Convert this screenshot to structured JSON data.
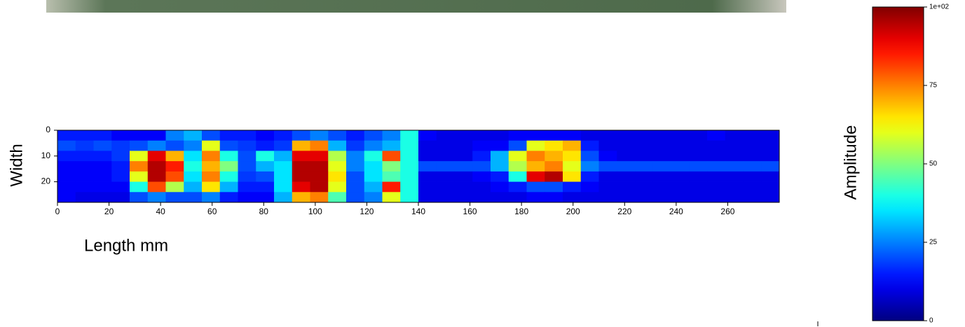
{
  "chart_data": {
    "type": "heatmap",
    "colormap": "jet",
    "xlabel": "Length mm",
    "ylabel": "Width",
    "xlim": [
      0,
      280
    ],
    "ylim": [
      28,
      0
    ],
    "xticks": [
      0,
      20,
      40,
      60,
      80,
      100,
      120,
      140,
      160,
      180,
      200,
      220,
      240,
      260
    ],
    "yticks": [
      0,
      10,
      20
    ],
    "xbins": [
      0,
      7,
      14,
      21,
      28,
      35,
      42,
      49,
      56,
      63,
      70,
      77,
      84,
      91,
      98,
      105,
      112,
      119,
      126,
      133,
      140,
      147,
      154,
      161,
      168,
      175,
      182,
      189,
      196,
      203,
      210,
      217,
      224,
      231,
      238,
      245,
      252,
      259,
      266,
      273,
      280
    ],
    "ybins": [
      0,
      4,
      8,
      12,
      16,
      20,
      24,
      28
    ],
    "z": [
      [
        15,
        15,
        15,
        12,
        12,
        12,
        25,
        30,
        20,
        15,
        15,
        12,
        15,
        20,
        25,
        20,
        15,
        20,
        25,
        40,
        12,
        10,
        10,
        10,
        10,
        12,
        12,
        12,
        12,
        10,
        10,
        10,
        10,
        10,
        10,
        10,
        12,
        10,
        10,
        10
      ],
      [
        20,
        18,
        20,
        18,
        20,
        25,
        20,
        25,
        60,
        20,
        18,
        15,
        18,
        70,
        75,
        30,
        18,
        25,
        30,
        40,
        10,
        10,
        10,
        12,
        12,
        20,
        60,
        65,
        70,
        15,
        10,
        10,
        10,
        10,
        10,
        10,
        10,
        10,
        10,
        10
      ],
      [
        15,
        15,
        15,
        18,
        60,
        90,
        70,
        35,
        75,
        40,
        20,
        40,
        30,
        90,
        90,
        55,
        25,
        40,
        80,
        40,
        10,
        10,
        10,
        15,
        30,
        60,
        75,
        70,
        65,
        20,
        12,
        10,
        10,
        10,
        10,
        10,
        10,
        10,
        10,
        10
      ],
      [
        12,
        12,
        12,
        15,
        75,
        95,
        85,
        40,
        70,
        50,
        20,
        30,
        35,
        95,
        95,
        60,
        25,
        35,
        50,
        40,
        20,
        20,
        20,
        20,
        30,
        55,
        70,
        75,
        60,
        25,
        20,
        20,
        20,
        20,
        20,
        20,
        20,
        20,
        20,
        20
      ],
      [
        12,
        12,
        12,
        15,
        60,
        95,
        80,
        35,
        75,
        40,
        18,
        20,
        35,
        95,
        95,
        65,
        20,
        35,
        45,
        40,
        10,
        10,
        10,
        12,
        15,
        40,
        90,
        95,
        65,
        15,
        10,
        10,
        10,
        10,
        10,
        10,
        10,
        10,
        10,
        10
      ],
      [
        12,
        12,
        12,
        12,
        40,
        80,
        55,
        30,
        65,
        30,
        15,
        15,
        35,
        90,
        95,
        60,
        20,
        30,
        85,
        40,
        10,
        10,
        10,
        10,
        12,
        15,
        20,
        20,
        15,
        12,
        10,
        10,
        10,
        10,
        10,
        10,
        10,
        10,
        10,
        10
      ],
      [
        12,
        10,
        10,
        10,
        20,
        25,
        20,
        20,
        25,
        15,
        12,
        12,
        30,
        70,
        75,
        45,
        20,
        25,
        60,
        40,
        10,
        10,
        10,
        10,
        10,
        10,
        12,
        12,
        10,
        10,
        10,
        10,
        10,
        10,
        10,
        10,
        10,
        10,
        10,
        10
      ]
    ],
    "colorbar": {
      "label": "Amplitude",
      "lim": [
        0,
        100
      ],
      "ticks": [
        0,
        25,
        50,
        75,
        {
          "value": 100,
          "label": "1e+02"
        }
      ]
    }
  }
}
